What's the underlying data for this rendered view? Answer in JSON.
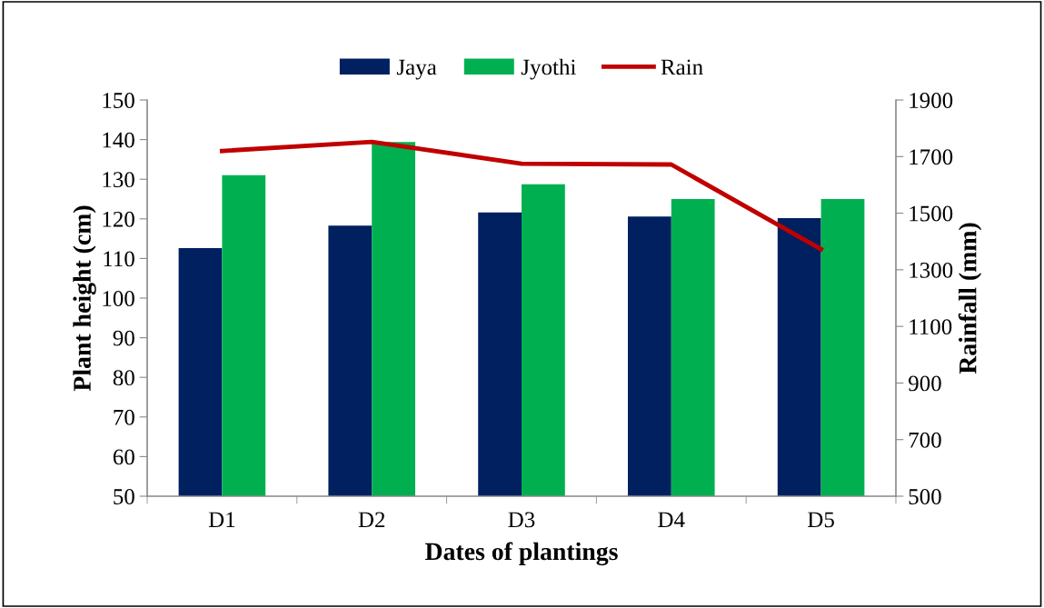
{
  "chart_data": {
    "type": "bar",
    "xlabel": "Dates of plantings",
    "ylabel": "Plant height (cm)",
    "y2label": "Rainfall (mm)",
    "categories": [
      "D1",
      "D2",
      "D3",
      "D4",
      "D5"
    ],
    "series": [
      {
        "name": "Jaya",
        "color": "#002060",
        "values": [
          112.6,
          118.3,
          121.6,
          120.6,
          120.2
        ]
      },
      {
        "name": "Jyothi",
        "color": "#00b050",
        "values": [
          131.0,
          139.4,
          128.7,
          125.0,
          125.0
        ]
      },
      {
        "name": "Rain",
        "type": "line",
        "axis": "y2",
        "color": "#c00000",
        "values": [
          1720,
          1752,
          1675,
          1672,
          1373
        ]
      }
    ],
    "ylim": [
      50,
      150
    ],
    "yticks": [
      50,
      60,
      70,
      80,
      90,
      100,
      110,
      120,
      130,
      140,
      150
    ],
    "y2lim": [
      500,
      1900
    ],
    "y2ticks": [
      500,
      700,
      900,
      1100,
      1300,
      1500,
      1700,
      1900
    ],
    "grid": false,
    "legend": "top",
    "marker": "none"
  }
}
